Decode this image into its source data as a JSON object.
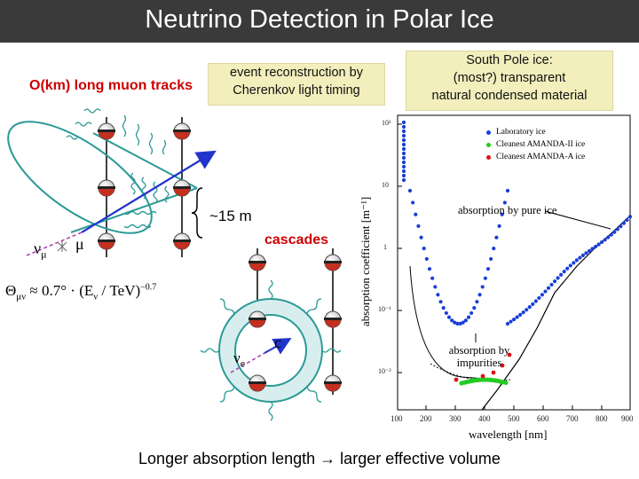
{
  "header": {
    "title": "Neutrino Detection in Polar Ice"
  },
  "labels": {
    "muon_track": "O(km) long muon tracks",
    "reconstruction_box": [
      "event reconstruction by",
      "Cherenkov light timing"
    ],
    "south_pole_box": [
      "South Pole ice:",
      "(most?) transparent",
      "natural condensed material"
    ],
    "string_spacing": "~15 m",
    "cascades": "cascades",
    "nu_mu": "ν",
    "nu_mu_sub": "μ",
    "mu": "μ",
    "nu_e": "ν",
    "nu_e_sub": "e",
    "c": "c",
    "formula_lhs": "Θ",
    "formula_sub": "μν",
    "formula_rhs": " ≈ 0.7° · (E",
    "formula_sub2": "ν",
    "formula_end": " / TeV)",
    "formula_exp": "−0.7"
  },
  "absorption_plot": {
    "ylabel": "absorption coefficient [m⁻¹]",
    "xlabel": "wavelength [nm]",
    "xticks": [
      "100",
      "200",
      "300",
      "400",
      "500",
      "600",
      "700",
      "800",
      "900"
    ],
    "yticks": [
      "10²",
      "10",
      "1",
      "10⁻¹",
      "10⁻²"
    ],
    "legend": [
      "Laboratory ice",
      "Cleanest AMANDA-II ice",
      "Cleanest AMANDA-A ice"
    ],
    "legend_colors": [
      "#1a3fd6",
      "#22cc22",
      "#dd1111"
    ],
    "annotation_pure_ice": "absorption by pure ice",
    "annotation_impurities": "absorption by impurities"
  },
  "footer": {
    "text": "Longer absorption length → larger effective volume"
  }
}
